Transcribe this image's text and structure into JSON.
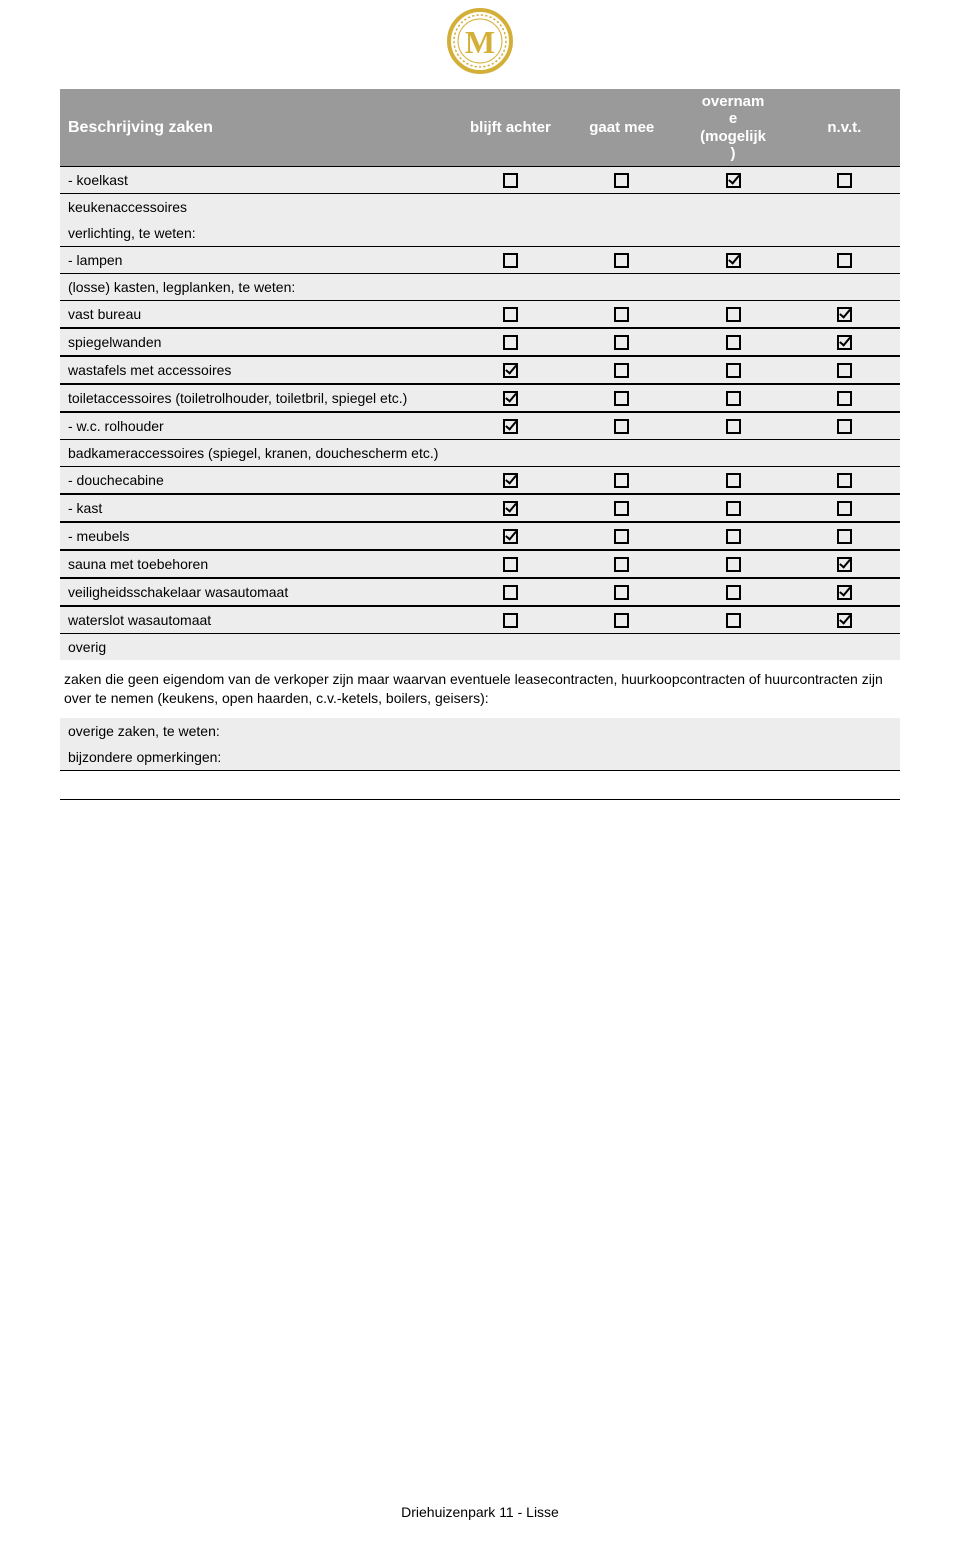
{
  "header": {
    "col_desc": "Beschrijving zaken",
    "col_blijft": "blijft achter",
    "col_gaat": "gaat mee",
    "col_overname": "overnam\ne\n(mogelijk\n)",
    "col_nvt": "n.v.t."
  },
  "rows": [
    {
      "type": "data",
      "label": "- koelkast",
      "checks": [
        false,
        false,
        true,
        false
      ]
    },
    {
      "type": "section",
      "label": "keukenaccessoires"
    },
    {
      "type": "section",
      "label": "verlichting, te weten:"
    },
    {
      "type": "data",
      "label": "- lampen",
      "checks": [
        false,
        false,
        true,
        false
      ]
    },
    {
      "type": "section",
      "label": "(losse) kasten, legplanken, te weten:"
    },
    {
      "type": "data",
      "label": "vast bureau",
      "checks": [
        false,
        false,
        false,
        true
      ]
    },
    {
      "type": "data",
      "label": "spiegelwanden",
      "checks": [
        false,
        false,
        false,
        true
      ]
    },
    {
      "type": "data",
      "label": "wastafels met accessoires",
      "checks": [
        true,
        false,
        false,
        false
      ]
    },
    {
      "type": "data",
      "label": "toiletaccessoires (toiletrolhouder, toiletbril, spiegel etc.)",
      "checks": [
        true,
        false,
        false,
        false
      ]
    },
    {
      "type": "data",
      "label": "- w.c. rolhouder",
      "checks": [
        true,
        false,
        false,
        false
      ]
    },
    {
      "type": "section",
      "label": "badkameraccessoires (spiegel, kranen, douchescherm etc.)"
    },
    {
      "type": "data",
      "label": "- douchecabine",
      "checks": [
        true,
        false,
        false,
        false
      ]
    },
    {
      "type": "data",
      "label": "- kast",
      "checks": [
        true,
        false,
        false,
        false
      ]
    },
    {
      "type": "data",
      "label": "- meubels",
      "checks": [
        true,
        false,
        false,
        false
      ]
    },
    {
      "type": "data",
      "label": "sauna met toebehoren",
      "checks": [
        false,
        false,
        false,
        true
      ]
    },
    {
      "type": "data",
      "label": "veiligheidsschakelaar wasautomaat",
      "checks": [
        false,
        false,
        false,
        true
      ]
    },
    {
      "type": "data",
      "label": "waterslot wasautomaat",
      "checks": [
        false,
        false,
        false,
        true
      ]
    },
    {
      "type": "section",
      "label": "overig"
    },
    {
      "type": "note",
      "label": "zaken die geen eigendom van de verkoper zijn maar waarvan eventuele leasecontracten, huurkoopcontracten of huurcontracten zijn over te nemen (keukens, open haarden, c.v.-ketels, boilers, geisers):"
    },
    {
      "type": "section",
      "label": "overige zaken, te weten:"
    },
    {
      "type": "section",
      "label": "bijzondere opmerkingen:"
    },
    {
      "type": "blank"
    }
  ],
  "footer": "Driehuizenpark 11 - Lisse",
  "colors": {
    "header_bg": "#9a9a9a",
    "row_bg": "#ededed",
    "logo_gold": "#d4af37",
    "logo_gold_dark": "#b8941f"
  }
}
